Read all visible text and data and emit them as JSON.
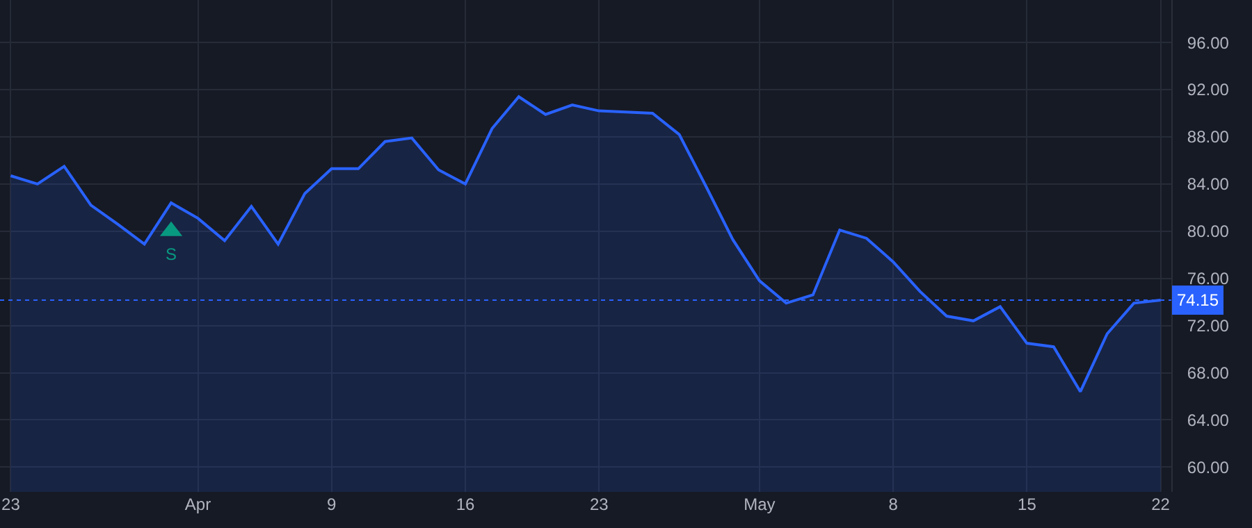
{
  "chart_data": {
    "type": "area",
    "categories": [
      "23",
      null,
      null,
      null,
      null,
      null,
      null,
      "Apr",
      null,
      null,
      null,
      null,
      "9",
      null,
      null,
      null,
      null,
      "16",
      null,
      null,
      null,
      null,
      "23",
      null,
      null,
      null,
      null,
      null,
      "May",
      null,
      null,
      null,
      null,
      "8",
      null,
      null,
      null,
      null,
      "15",
      null,
      null,
      null,
      null,
      "22"
    ],
    "series": [
      {
        "color": "#2962ff",
        "values": [
          84.7,
          84.0,
          85.5,
          82.2,
          80.6,
          78.9,
          82.4,
          81.1,
          79.2,
          82.1,
          78.9,
          83.2,
          85.3,
          85.3,
          87.6,
          87.9,
          85.2,
          84.0,
          88.7,
          91.4,
          89.9,
          90.7,
          90.2,
          90.1,
          90.0,
          88.2,
          83.8,
          79.3,
          75.8,
          73.9,
          74.6,
          80.1,
          79.4,
          77.4,
          74.9,
          72.8,
          72.4,
          73.6,
          70.5,
          70.2,
          66.4,
          71.3,
          73.9,
          74.15
        ]
      },
      {
        "type": "scatter",
        "name": "S",
        "color": "#089981",
        "marker": "triangle",
        "values": [
          null,
          null,
          null,
          null,
          null,
          null,
          80.0,
          null,
          null,
          null,
          null,
          null,
          null,
          null,
          null,
          null,
          null,
          null,
          null,
          null,
          null,
          null,
          null,
          null,
          null,
          null,
          null,
          null,
          null,
          null,
          null,
          null,
          null,
          null,
          null,
          null,
          null,
          null,
          null,
          null,
          null,
          null,
          null,
          null
        ]
      }
    ],
    "ylim": [
      57.9,
      99.6
    ],
    "yticks": [
      {
        "value": 60,
        "label": "60.00"
      },
      {
        "value": 64,
        "label": "64.00"
      },
      {
        "value": 68,
        "label": "68.00"
      },
      {
        "value": 72,
        "label": "72.00"
      },
      {
        "value": 76,
        "label": "76.00"
      },
      {
        "value": 80,
        "label": "80.00"
      },
      {
        "value": 84,
        "label": "84.00"
      },
      {
        "value": 88,
        "label": "88.00"
      },
      {
        "value": 92,
        "label": "92.00"
      },
      {
        "value": 96,
        "label": "96.00"
      }
    ],
    "ref_lines": [
      {
        "axis": "y",
        "value": 74.15,
        "label": "74.15",
        "color": "#2962ff",
        "line_style": "dotted"
      }
    ],
    "grid": true,
    "legend": false
  }
}
